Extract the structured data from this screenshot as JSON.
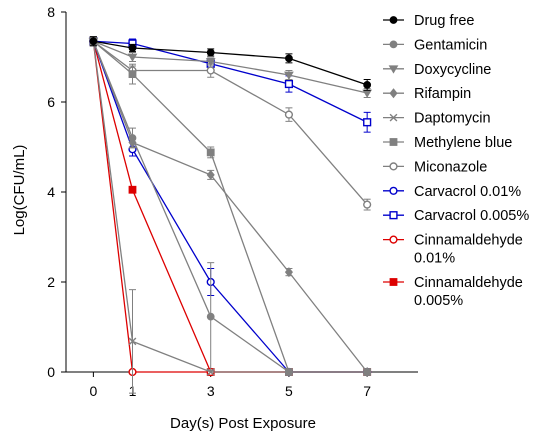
{
  "chart_data": {
    "type": "line",
    "xlabel": "Day(s) Post Exposure",
    "ylabel": "Log(CFU/mL)",
    "x": [
      0,
      1,
      3,
      5,
      7
    ],
    "x_ticks": [
      "0",
      "1",
      "3",
      "5",
      "7"
    ],
    "y_ticks": [
      "0",
      "2",
      "4",
      "6",
      "8"
    ],
    "xlim": [
      -0.7,
      8.3
    ],
    "ylim": [
      0,
      8
    ],
    "grid": false,
    "legend_position": "right",
    "series": [
      {
        "name": "Drug free",
        "color": "#000000",
        "marker": "filled-circle",
        "values": [
          7.35,
          7.2,
          7.1,
          6.97,
          6.38
        ],
        "errors": [
          0.1,
          0.08,
          0.08,
          0.1,
          0.12
        ]
      },
      {
        "name": "Gentamicin",
        "color": "#808080",
        "marker": "filled-circle",
        "values": [
          7.35,
          5.2,
          1.23,
          0,
          0
        ],
        "errors": [
          0.1,
          0.22,
          1.2,
          0,
          0
        ]
      },
      {
        "name": "Doxycycline",
        "color": "#808080",
        "marker": "filled-triangle-down",
        "values": [
          7.35,
          7.0,
          6.9,
          6.6,
          6.2
        ],
        "errors": [
          0.1,
          0.1,
          0.08,
          0.1,
          0.1
        ]
      },
      {
        "name": "Rifampin",
        "color": "#808080",
        "marker": "filled-diamond",
        "values": [
          7.35,
          5.1,
          4.38,
          2.22,
          0
        ],
        "errors": [
          0.1,
          0.1,
          0.1,
          0.08,
          0
        ]
      },
      {
        "name": "Daptomycin",
        "color": "#808080",
        "marker": "x",
        "values": [
          7.35,
          0.68,
          0,
          0,
          0
        ],
        "errors": [
          0.1,
          1.15,
          0,
          0,
          0
        ]
      },
      {
        "name": "Methylene blue",
        "color": "#808080",
        "marker": "filled-square",
        "values": [
          7.35,
          6.62,
          4.88,
          0,
          0
        ],
        "errors": [
          0.1,
          0.22,
          0.12,
          0,
          0
        ]
      },
      {
        "name": "Miconazole",
        "color": "#808080",
        "marker": "open-circle",
        "values": [
          7.35,
          6.7,
          6.7,
          5.72,
          3.72
        ],
        "errors": [
          0.1,
          0.1,
          0.15,
          0.15,
          0.12
        ]
      },
      {
        "name": "Carvacrol 0.01%",
        "color": "#0000cc",
        "marker": "open-circle",
        "values": [
          7.35,
          4.95,
          2.0,
          0,
          0
        ],
        "errors": [
          0.1,
          0.15,
          0.3,
          0,
          0
        ]
      },
      {
        "name": "Carvacrol 0.005%",
        "color": "#0000cc",
        "marker": "open-square",
        "values": [
          7.35,
          7.3,
          6.85,
          6.4,
          5.55
        ],
        "errors": [
          0.1,
          0.1,
          0.12,
          0.18,
          0.22
        ]
      },
      {
        "name": "Cinnamaldehyde 0.01%",
        "name_lines": [
          "Cinnamaldehyde",
          "0.01%"
        ],
        "color": "#dd0000",
        "marker": "open-circle",
        "values": [
          7.35,
          0,
          0,
          0,
          0
        ],
        "errors": [
          0.1,
          0,
          0,
          0,
          0
        ]
      },
      {
        "name": "Cinnamaldehyde 0.005%",
        "name_lines": [
          "Cinnamaldehyde",
          "0.005%"
        ],
        "color": "#dd0000",
        "marker": "filled-square",
        "values": [
          7.35,
          4.05,
          0,
          0,
          0
        ],
        "errors": [
          0.1,
          0.05,
          0,
          0,
          0
        ]
      }
    ]
  }
}
